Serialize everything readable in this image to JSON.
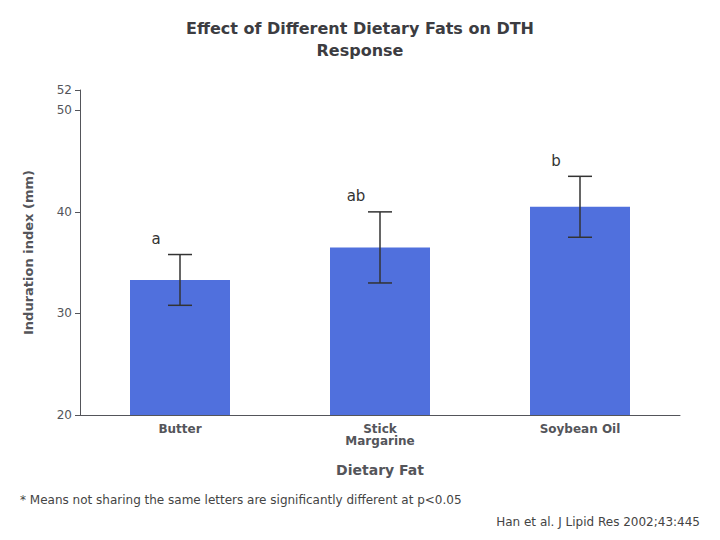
{
  "chart_data": {
    "type": "bar",
    "title": "Effect of Different Dietary Fats on DTH\nResponse",
    "categories": [
      "Butter",
      "Stick\nMargarine",
      "Soybean Oil"
    ],
    "values": [
      33.3,
      36.5,
      40.5
    ],
    "errors": [
      2.5,
      3.5,
      3.0
    ],
    "letters": [
      "a",
      "ab",
      "b"
    ],
    "x_label": "Dietary Fat",
    "y_label": "Induration index (mm)",
    "ylim": [
      20,
      52
    ],
    "yticks": [
      20,
      30,
      40,
      50
    ],
    "grid": false,
    "annotations": [
      "* Means not sharing the same letters are significantly different at p<0.05",
      "Han et al. J Lipid Res 2002;43:445"
    ]
  }
}
